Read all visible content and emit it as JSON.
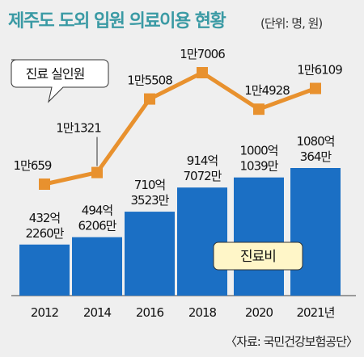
{
  "title": "제주도 도외 입원 의료이용 현황",
  "unit": "(단위: 명, 원)",
  "source": "〈자료: 국민건강보험공단〉",
  "colors": {
    "title": "#3a9aa4",
    "bar": "#1b6fc4",
    "line": "#e8912e",
    "background": "#efefef"
  },
  "chart_data": {
    "type": "bar",
    "categories": [
      "2012",
      "2014",
      "2016",
      "2018",
      "2020",
      "2021년"
    ],
    "series": [
      {
        "name": "진료비",
        "type": "bar",
        "values": [
          43222600000,
          49462060000,
          71035230000,
          91470720000,
          100010390000,
          108003640000
        ],
        "labels": [
          [
            "432억",
            "2260만"
          ],
          [
            "494억",
            "6206만"
          ],
          [
            "710억",
            "3523만"
          ],
          [
            "914억",
            "7072만"
          ],
          [
            "1000억",
            "1039만"
          ],
          [
            "1080억",
            "364만"
          ]
        ]
      },
      {
        "name": "진료 실인원",
        "type": "line",
        "values": [
          10659,
          11321,
          15508,
          17006,
          14928,
          16109
        ],
        "labels": [
          "1만659",
          "1만1321",
          "1만5508",
          "1만7006",
          "1만4928",
          "1만6109"
        ]
      }
    ]
  }
}
